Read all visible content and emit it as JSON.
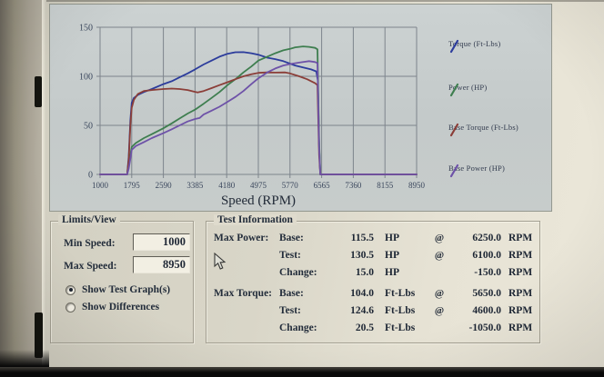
{
  "chart_data": {
    "type": "line",
    "title": "",
    "xlabel": "Speed (RPM)",
    "ylabel": "",
    "xlim": [
      1000,
      8950
    ],
    "ylim": [
      0,
      150
    ],
    "xticks": [
      1000,
      1795,
      2590,
      3385,
      4180,
      4975,
      5770,
      6565,
      7360,
      8155,
      8950
    ],
    "yticks": [
      0,
      50,
      100,
      150
    ],
    "grid": true,
    "legend_position": "right",
    "series": [
      {
        "name": "Torque (Ft-Lbs)",
        "color": "#2c3c9c",
        "points": [
          [
            1000,
            0
          ],
          [
            1680,
            0
          ],
          [
            1720,
            18
          ],
          [
            1760,
            55
          ],
          [
            1795,
            73
          ],
          [
            1850,
            78
          ],
          [
            1950,
            81
          ],
          [
            2100,
            84
          ],
          [
            2300,
            87
          ],
          [
            2590,
            92
          ],
          [
            2800,
            95
          ],
          [
            3000,
            99
          ],
          [
            3200,
            103
          ],
          [
            3385,
            107
          ],
          [
            3600,
            112
          ],
          [
            3800,
            116
          ],
          [
            4000,
            120
          ],
          [
            4200,
            123
          ],
          [
            4400,
            124.5
          ],
          [
            4600,
            124.6
          ],
          [
            4800,
            123.5
          ],
          [
            4975,
            122
          ],
          [
            5200,
            119
          ],
          [
            5400,
            117.5
          ],
          [
            5600,
            115.5
          ],
          [
            5770,
            113
          ],
          [
            5900,
            111
          ],
          [
            6100,
            109
          ],
          [
            6300,
            107
          ],
          [
            6430,
            105
          ],
          [
            6470,
            96
          ],
          [
            6500,
            30
          ],
          [
            6530,
            0
          ],
          [
            8950,
            0
          ]
        ]
      },
      {
        "name": "Power (HP)",
        "color": "#3e7e4f",
        "points": [
          [
            1000,
            0
          ],
          [
            1680,
            0
          ],
          [
            1720,
            8
          ],
          [
            1760,
            20
          ],
          [
            1795,
            28
          ],
          [
            1900,
            32
          ],
          [
            2100,
            37
          ],
          [
            2300,
            41
          ],
          [
            2590,
            47
          ],
          [
            2800,
            52
          ],
          [
            3000,
            57
          ],
          [
            3200,
            62
          ],
          [
            3385,
            66
          ],
          [
            3600,
            72
          ],
          [
            3800,
            78
          ],
          [
            4000,
            84
          ],
          [
            4200,
            91
          ],
          [
            4400,
            97
          ],
          [
            4600,
            104
          ],
          [
            4800,
            110
          ],
          [
            4975,
            116
          ],
          [
            5200,
            120
          ],
          [
            5400,
            123.5
          ],
          [
            5600,
            126.5
          ],
          [
            5770,
            128
          ],
          [
            5900,
            129.5
          ],
          [
            6100,
            130.5
          ],
          [
            6250,
            130
          ],
          [
            6400,
            129
          ],
          [
            6460,
            127.5
          ],
          [
            6500,
            35
          ],
          [
            6530,
            0
          ],
          [
            8950,
            0
          ]
        ]
      },
      {
        "name": "Base Torque (Ft-Lbs)",
        "color": "#8b3e38",
        "points": [
          [
            1000,
            0
          ],
          [
            1680,
            0
          ],
          [
            1720,
            15
          ],
          [
            1760,
            50
          ],
          [
            1795,
            68
          ],
          [
            1850,
            76
          ],
          [
            1950,
            82
          ],
          [
            2100,
            85
          ],
          [
            2300,
            86
          ],
          [
            2590,
            87
          ],
          [
            2800,
            87.5
          ],
          [
            3000,
            87
          ],
          [
            3200,
            86
          ],
          [
            3350,
            84.5
          ],
          [
            3450,
            83.5
          ],
          [
            3600,
            85
          ],
          [
            3800,
            88
          ],
          [
            4000,
            91
          ],
          [
            4200,
            94
          ],
          [
            4400,
            97
          ],
          [
            4600,
            100
          ],
          [
            4800,
            102
          ],
          [
            4975,
            103.5
          ],
          [
            5200,
            104
          ],
          [
            5400,
            103.8
          ],
          [
            5650,
            104
          ],
          [
            5770,
            103
          ],
          [
            6000,
            100
          ],
          [
            6200,
            97
          ],
          [
            6400,
            93
          ],
          [
            6460,
            91
          ],
          [
            6500,
            20
          ],
          [
            6530,
            0
          ],
          [
            8950,
            0
          ]
        ]
      },
      {
        "name": "Base Power (HP)",
        "color": "#6e52a8",
        "points": [
          [
            1000,
            0
          ],
          [
            1680,
            0
          ],
          [
            1720,
            6
          ],
          [
            1760,
            16
          ],
          [
            1795,
            25
          ],
          [
            1900,
            29
          ],
          [
            2100,
            33
          ],
          [
            2300,
            37
          ],
          [
            2590,
            42
          ],
          [
            2800,
            46
          ],
          [
            3000,
            50
          ],
          [
            3200,
            54
          ],
          [
            3385,
            56.5
          ],
          [
            3500,
            57.5
          ],
          [
            3600,
            61
          ],
          [
            3800,
            65
          ],
          [
            4000,
            69
          ],
          [
            4200,
            74
          ],
          [
            4400,
            79
          ],
          [
            4600,
            85
          ],
          [
            4800,
            92
          ],
          [
            4975,
            98
          ],
          [
            5200,
            104
          ],
          [
            5400,
            108
          ],
          [
            5600,
            111
          ],
          [
            5770,
            112.5
          ],
          [
            6000,
            114
          ],
          [
            6250,
            115.5
          ],
          [
            6400,
            114.5
          ],
          [
            6460,
            113.5
          ],
          [
            6500,
            28
          ],
          [
            6530,
            0
          ],
          [
            8950,
            0
          ]
        ]
      }
    ]
  },
  "limits_view": {
    "title": "Limits/View",
    "min_speed": {
      "label": "Min Speed:",
      "value": "1000"
    },
    "max_speed": {
      "label": "Max Speed:",
      "value": "8950"
    },
    "options": [
      {
        "label": "Show Test Graph(s)",
        "selected": true
      },
      {
        "label": "Show Differences",
        "selected": false
      }
    ]
  },
  "test_information": {
    "title": "Test Information",
    "rows": [
      {
        "group": "Max Power:",
        "kind": "Base:",
        "value": "115.5",
        "unit": "HP",
        "at": "@",
        "rpm": "6250.0",
        "rpm_unit": "RPM"
      },
      {
        "group": "",
        "kind": "Test:",
        "value": "130.5",
        "unit": "HP",
        "at": "@",
        "rpm": "6100.0",
        "rpm_unit": "RPM"
      },
      {
        "group": "",
        "kind": "Change:",
        "value": "15.0",
        "unit": "HP",
        "at": "",
        "rpm": "-150.0",
        "rpm_unit": "RPM"
      },
      {
        "group": "Max Torque:",
        "kind": "Base:",
        "value": "104.0",
        "unit": "Ft-Lbs",
        "at": "@",
        "rpm": "5650.0",
        "rpm_unit": "RPM"
      },
      {
        "group": "",
        "kind": "Test:",
        "value": "124.6",
        "unit": "Ft-Lbs",
        "at": "@",
        "rpm": "4600.0",
        "rpm_unit": "RPM"
      },
      {
        "group": "",
        "kind": "Change:",
        "value": "20.5",
        "unit": "Ft-Lbs",
        "at": "",
        "rpm": "-1050.0",
        "rpm_unit": "RPM"
      }
    ]
  }
}
